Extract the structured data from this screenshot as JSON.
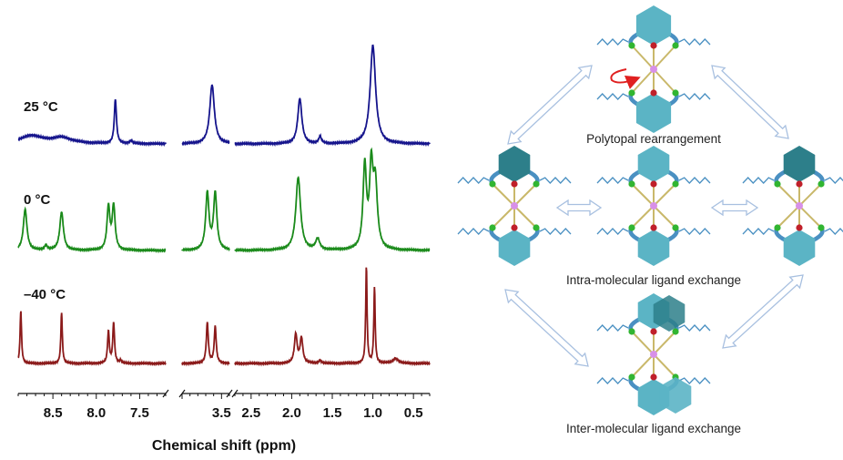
{
  "chart_data": {
    "type": "line",
    "title": "",
    "xlabel": "Chemical shift (ppm)",
    "ylabel": "",
    "x_axis_reversed": true,
    "x_axis_broken": true,
    "tick_labels": [
      "8.5",
      "8.0",
      "7.5",
      "3.5",
      "2.5",
      "2.0",
      "1.5",
      "1.0",
      "0.5"
    ],
    "segments_ppm": [
      [
        8.9,
        7.2
      ],
      [
        4.0,
        3.4
      ],
      [
        2.7,
        0.3
      ]
    ],
    "series": [
      {
        "name": "25 °C",
        "color": "#15148c",
        "peaks": [
          {
            "ppm": 8.75,
            "height": 0.08,
            "width": 0.15
          },
          {
            "ppm": 8.4,
            "height": 0.06,
            "width": 0.15
          },
          {
            "ppm": 7.78,
            "height": 0.45,
            "width": 0.015
          },
          {
            "ppm": 7.6,
            "height": 0.03,
            "width": 0.02
          },
          {
            "ppm": 3.62,
            "height": 0.6,
            "width": 0.035
          },
          {
            "ppm": 1.9,
            "height": 0.46,
            "width": 0.03
          },
          {
            "ppm": 1.65,
            "height": 0.07,
            "width": 0.02
          },
          {
            "ppm": 1.0,
            "height": 1.0,
            "width": 0.04
          }
        ]
      },
      {
        "name": "0 °C",
        "color": "#1a8a1a",
        "peaks": [
          {
            "ppm": 8.82,
            "height": 0.45,
            "width": 0.025
          },
          {
            "ppm": 8.58,
            "height": 0.05,
            "width": 0.02
          },
          {
            "ppm": 8.4,
            "height": 0.42,
            "width": 0.025
          },
          {
            "ppm": 7.86,
            "height": 0.47,
            "width": 0.02
          },
          {
            "ppm": 7.8,
            "height": 0.48,
            "width": 0.02
          },
          {
            "ppm": 3.68,
            "height": 0.62,
            "width": 0.025
          },
          {
            "ppm": 3.58,
            "height": 0.62,
            "width": 0.025
          },
          {
            "ppm": 1.92,
            "height": 0.8,
            "width": 0.035
          },
          {
            "ppm": 1.68,
            "height": 0.12,
            "width": 0.03
          },
          {
            "ppm": 1.1,
            "height": 0.9,
            "width": 0.025
          },
          {
            "ppm": 1.02,
            "height": 0.84,
            "width": 0.025
          },
          {
            "ppm": 0.97,
            "height": 0.7,
            "width": 0.03
          }
        ]
      },
      {
        "name": "–40 °C",
        "color": "#8b1a1a",
        "peaks": [
          {
            "ppm": 8.87,
            "height": 0.55,
            "width": 0.01
          },
          {
            "ppm": 8.4,
            "height": 0.53,
            "width": 0.01
          },
          {
            "ppm": 7.86,
            "height": 0.33,
            "width": 0.012
          },
          {
            "ppm": 7.8,
            "height": 0.42,
            "width": 0.012
          },
          {
            "ppm": 7.72,
            "height": 0.03,
            "width": 0.012
          },
          {
            "ppm": 3.68,
            "height": 0.42,
            "width": 0.015
          },
          {
            "ppm": 3.58,
            "height": 0.38,
            "width": 0.015
          },
          {
            "ppm": 1.95,
            "height": 0.3,
            "width": 0.02
          },
          {
            "ppm": 1.88,
            "height": 0.26,
            "width": 0.02
          },
          {
            "ppm": 1.65,
            "height": 0.03,
            "width": 0.02
          },
          {
            "ppm": 1.08,
            "height": 1.0,
            "width": 0.01
          },
          {
            "ppm": 0.98,
            "height": 0.78,
            "width": 0.01
          },
          {
            "ppm": 0.72,
            "height": 0.05,
            "width": 0.04
          }
        ]
      }
    ],
    "legend": "none; series names printed left of each trace"
  },
  "diagram": {
    "labels": {
      "top": "Polytopal rearrangement",
      "middle": "Intra-molecular ligand exchange",
      "bottom": "Inter-molecular ligand exchange"
    },
    "colors": {
      "hexagon": "#5bb4c5",
      "hexagon_dark": "#2d7f8a",
      "arm": "#4a90c2",
      "linker": "#c9b86a",
      "green_node": "#31b531",
      "red_node": "#c0202a",
      "metal_node": "#d890e8",
      "arrow": "#a8c0e0",
      "rotation_arrow": "#e02020"
    }
  }
}
